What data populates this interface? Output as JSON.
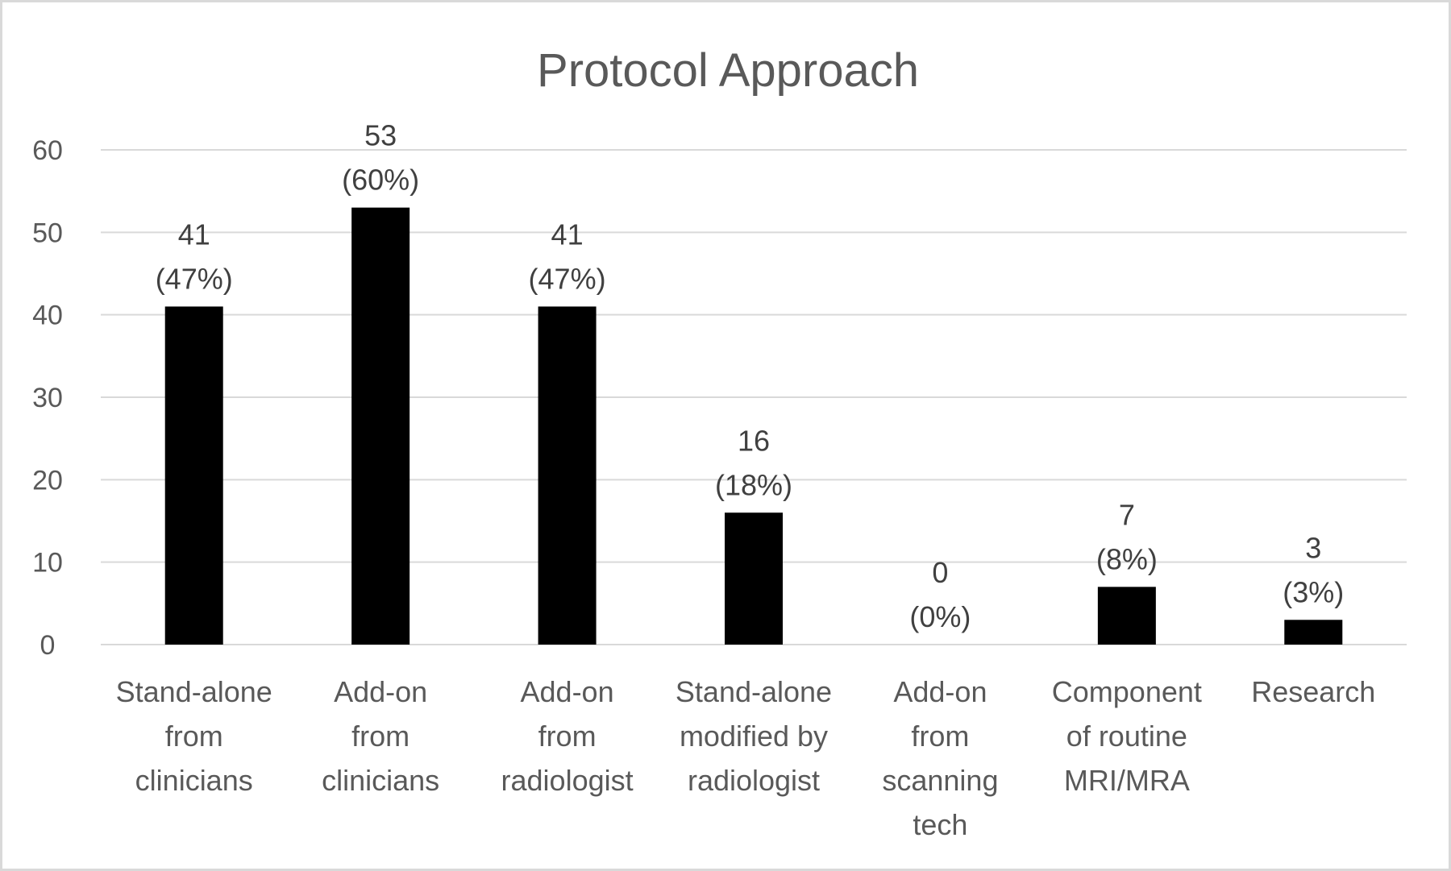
{
  "chart_data": {
    "type": "bar",
    "title": "Protocol Approach",
    "xlabel": "",
    "ylabel": "",
    "ylim": [
      0,
      60
    ],
    "yticks": [
      0,
      10,
      20,
      30,
      40,
      50,
      60
    ],
    "grid": true,
    "legend": "none",
    "bar_color": "#000000",
    "grid_color": "#d9d9d9",
    "categories": [
      [
        "Stand-alone",
        "from",
        "clinicians"
      ],
      [
        "Add-on",
        "from",
        "clinicians"
      ],
      [
        "Add-on",
        "from",
        "radiologist"
      ],
      [
        "Stand-alone",
        "modified by",
        "radiologist"
      ],
      [
        "Add-on",
        "from",
        "scanning",
        "tech"
      ],
      [
        "Component",
        "of routine",
        "MRI/MRA"
      ],
      [
        "Research"
      ]
    ],
    "values": [
      41,
      53,
      41,
      16,
      0,
      7,
      3
    ],
    "data_labels": [
      [
        "41",
        "(47%)"
      ],
      [
        "53",
        "(60%)"
      ],
      [
        "41",
        "(47%)"
      ],
      [
        "16",
        "(18%)"
      ],
      [
        "0",
        "(0%)"
      ],
      [
        "7",
        "(8%)"
      ],
      [
        "3",
        "(3%)"
      ]
    ]
  }
}
